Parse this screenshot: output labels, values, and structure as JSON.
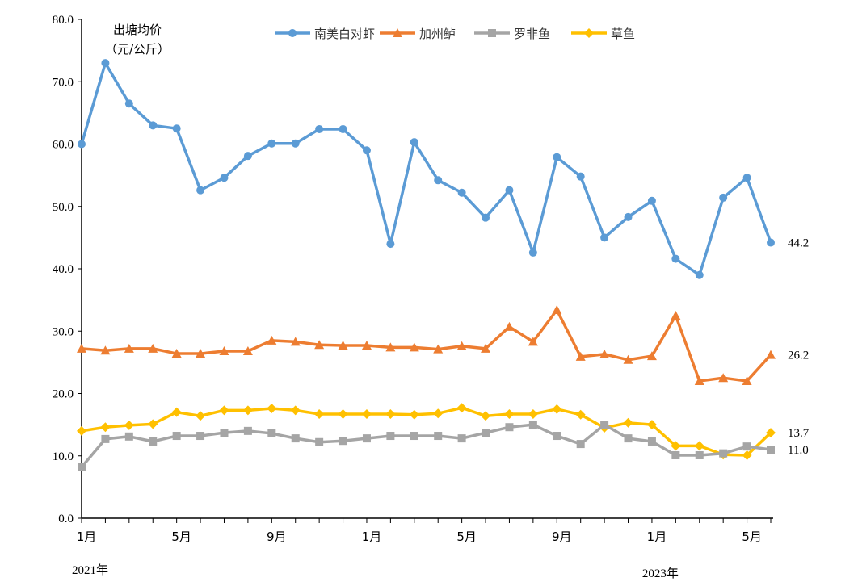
{
  "chart_data": {
    "type": "line",
    "ylabel": [
      "出塘均价",
      "（元/公斤）"
    ],
    "ylim": [
      0,
      80
    ],
    "yticks": [
      "0.0",
      "10.0",
      "20.0",
      "30.0",
      "40.0",
      "50.0",
      "60.0",
      "70.0",
      "80.0"
    ],
    "xtick_labels": [
      {
        "index": 0,
        "label": "1月"
      },
      {
        "index": 4,
        "label": "5月"
      },
      {
        "index": 8,
        "label": "9月"
      },
      {
        "index": 12,
        "label": "1月"
      },
      {
        "index": 16,
        "label": "5月"
      },
      {
        "index": 20,
        "label": "9月"
      },
      {
        "index": 24,
        "label": "1月"
      },
      {
        "index": 28,
        "label": "5月"
      }
    ],
    "year_labels": [
      {
        "index": 0,
        "label": "2021年"
      },
      {
        "index": 24,
        "label": "2023年"
      }
    ],
    "x": [
      "2021-01",
      "2021-02",
      "2021-03",
      "2021-04",
      "2021-05",
      "2021-06",
      "2021-07",
      "2021-08",
      "2021-09",
      "2021-10",
      "2021-11",
      "2021-12",
      "2022-01",
      "2022-02",
      "2022-03",
      "2022-04",
      "2022-05",
      "2022-06",
      "2022-07",
      "2022-08",
      "2022-09",
      "2022-10",
      "2022-11",
      "2022-12",
      "2023-01",
      "2023-02",
      "2023-03",
      "2023-04",
      "2023-05",
      "2023-06"
    ],
    "legend_position": "top",
    "grid": false,
    "series": [
      {
        "name": "南美白对虾",
        "color": "#5B9BD5",
        "marker": "circle",
        "end_label": "44.2",
        "values": [
          60.0,
          73.0,
          66.5,
          63.0,
          62.5,
          52.6,
          54.6,
          58.1,
          60.1,
          60.1,
          62.4,
          62.4,
          59.0,
          44.0,
          60.3,
          54.2,
          52.2,
          48.2,
          52.6,
          42.6,
          57.9,
          54.8,
          45.0,
          48.3,
          50.9,
          41.6,
          39.0,
          51.4,
          54.6,
          44.2
        ]
      },
      {
        "name": "加州鲈",
        "color": "#ED7D31",
        "marker": "triangle",
        "end_label": "26.2",
        "values": [
          27.2,
          26.9,
          27.2,
          27.2,
          26.4,
          26.4,
          26.8,
          26.8,
          28.5,
          28.3,
          27.8,
          27.7,
          27.7,
          27.4,
          27.4,
          27.1,
          27.6,
          27.2,
          30.7,
          28.3,
          33.4,
          25.9,
          26.3,
          25.4,
          26.0,
          32.5,
          22.0,
          22.5,
          22.0,
          26.2
        ]
      },
      {
        "name": "罗非鱼",
        "color": "#A5A5A5",
        "marker": "square",
        "end_label": "11.0",
        "values": [
          8.2,
          12.7,
          13.1,
          12.3,
          13.2,
          13.2,
          13.7,
          14.0,
          13.6,
          12.8,
          12.2,
          12.4,
          12.8,
          13.2,
          13.2,
          13.2,
          12.8,
          13.7,
          14.6,
          15.0,
          13.2,
          11.9,
          15.0,
          12.8,
          12.3,
          10.1,
          10.1,
          10.4,
          11.5,
          11.0
        ]
      },
      {
        "name": "草鱼",
        "color": "#FFC000",
        "marker": "diamond",
        "end_label": "13.7",
        "values": [
          14.0,
          14.6,
          14.9,
          15.1,
          17.0,
          16.4,
          17.3,
          17.3,
          17.6,
          17.3,
          16.7,
          16.7,
          16.7,
          16.7,
          16.6,
          16.8,
          17.7,
          16.4,
          16.7,
          16.7,
          17.5,
          16.6,
          14.5,
          15.3,
          15.0,
          11.6,
          11.6,
          10.2,
          10.1,
          13.7
        ]
      }
    ]
  }
}
